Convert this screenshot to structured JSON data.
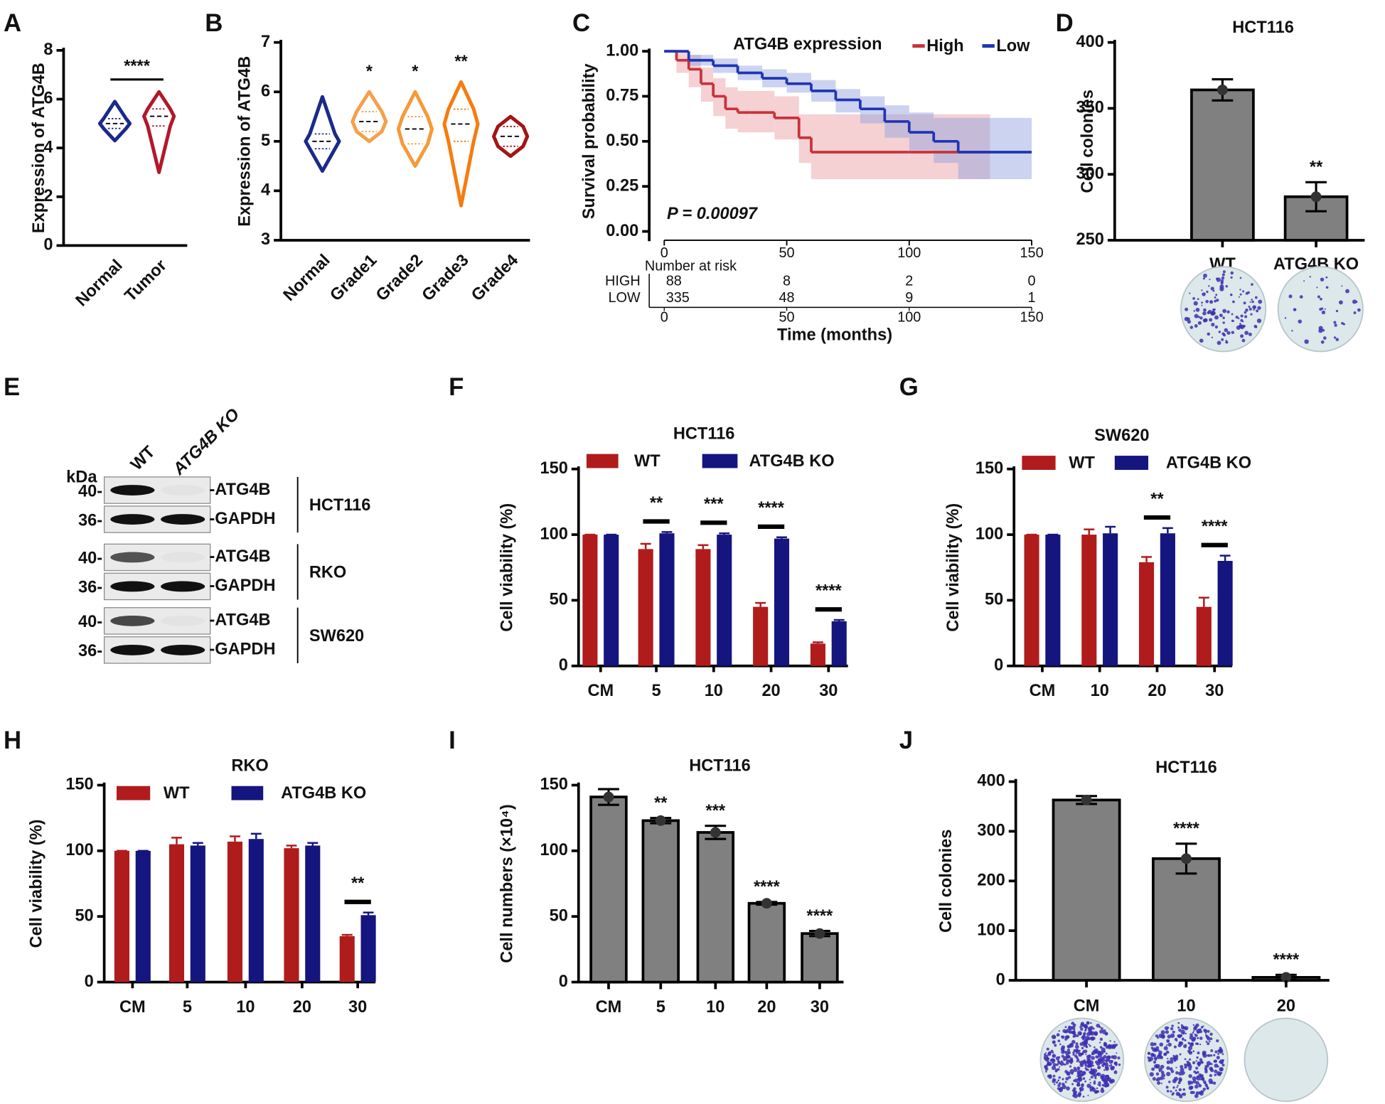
{
  "chart_data": [
    {
      "type": "violin",
      "letter": "A",
      "ylabel": "Expression of ATG4B",
      "ylim": [
        0,
        8
      ],
      "yticks": [
        0,
        2,
        4,
        6,
        8
      ],
      "categories": [
        "Normal",
        "Tumor"
      ],
      "colors": [
        "#1b2a8a",
        "#b2182b"
      ],
      "stats": [
        {
          "min": 4.3,
          "q1": 4.8,
          "median": 5.0,
          "q3": 5.2,
          "max": 5.9
        },
        {
          "min": 3.0,
          "q1": 4.9,
          "median": 5.3,
          "q3": 5.6,
          "max": 6.3
        }
      ],
      "comparison": {
        "text": "****",
        "from": 0,
        "to": 1
      }
    },
    {
      "type": "violin",
      "letter": "B",
      "ylabel": "Expression of ATG4B",
      "ylim": [
        3,
        7
      ],
      "yticks": [
        3,
        4,
        5,
        6,
        7
      ],
      "categories": [
        "Normal",
        "Grade1",
        "Grade2",
        "Grade3",
        "Grade4"
      ],
      "colors": [
        "#1b2a8a",
        "#f5a04a",
        "#f59a3a",
        "#f57c10",
        "#a31515"
      ],
      "stats": [
        {
          "min": 4.4,
          "q1": 4.85,
          "median": 5.0,
          "q3": 5.15,
          "max": 5.9
        },
        {
          "min": 5.0,
          "q1": 5.2,
          "median": 5.4,
          "q3": 5.6,
          "max": 6.0
        },
        {
          "min": 4.5,
          "q1": 4.95,
          "median": 5.25,
          "q3": 5.5,
          "max": 6.0
        },
        {
          "min": 3.7,
          "q1": 5.0,
          "median": 5.35,
          "q3": 5.65,
          "max": 6.2
        },
        {
          "min": 4.7,
          "q1": 4.9,
          "median": 5.1,
          "q3": 5.3,
          "max": 5.5
        }
      ],
      "annotations": [
        {
          "index": 1,
          "text": "*"
        },
        {
          "index": 2,
          "text": "*"
        },
        {
          "index": 3,
          "text": "**"
        }
      ]
    },
    {
      "type": "survival",
      "letter": "C",
      "ylabel": "Survival probability",
      "xlabel": "Time (months)",
      "legend_title": "ATG4B expression",
      "p_value": "P = 0.00097",
      "xlim": [
        0,
        150
      ],
      "xticks": [
        0,
        50,
        100,
        150
      ],
      "ylim": [
        0,
        1
      ],
      "yticks": [
        {
          "value": 0,
          "label": "0.00"
        },
        {
          "value": 0.25,
          "label": "0.25"
        },
        {
          "value": 0.5,
          "label": "0.50"
        },
        {
          "value": 0.75,
          "label": "0.75"
        },
        {
          "value": 1,
          "label": "1.00"
        }
      ],
      "series": [
        {
          "name": "High",
          "color": "#c8323a",
          "band_color": "#e89a9e",
          "x": [
            0,
            5,
            10,
            15,
            20,
            25,
            30,
            35,
            45,
            55,
            60,
            100,
            133
          ],
          "values": [
            1,
            0.95,
            0.9,
            0.82,
            0.75,
            0.68,
            0.66,
            0.66,
            0.63,
            0.52,
            0.44,
            0.44,
            0.44
          ],
          "lower": [
            1,
            0.88,
            0.8,
            0.72,
            0.64,
            0.57,
            0.55,
            0.55,
            0.51,
            0.38,
            0.29,
            0.29,
            0.29
          ],
          "upper": [
            1,
            1,
            0.98,
            0.91,
            0.85,
            0.8,
            0.78,
            0.78,
            0.75,
            0.65,
            0.65,
            0.65,
            0.65
          ]
        },
        {
          "name": "Low",
          "color": "#1f35b4",
          "band_color": "#8f9ee0",
          "x": [
            0,
            10,
            20,
            30,
            40,
            50,
            60,
            70,
            80,
            90,
            100,
            110,
            120,
            150
          ],
          "values": [
            1,
            0.95,
            0.92,
            0.88,
            0.85,
            0.82,
            0.78,
            0.73,
            0.68,
            0.61,
            0.55,
            0.5,
            0.44,
            0.44
          ],
          "lower": [
            1,
            0.92,
            0.88,
            0.84,
            0.8,
            0.77,
            0.72,
            0.66,
            0.6,
            0.52,
            0.45,
            0.38,
            0.29,
            0.29
          ],
          "upper": [
            1,
            0.98,
            0.96,
            0.92,
            0.9,
            0.88,
            0.84,
            0.79,
            0.75,
            0.7,
            0.66,
            0.63,
            0.63,
            0.63
          ]
        }
      ],
      "risk_table": {
        "title": "Number at risk",
        "rows": [
          {
            "label": "HIGH",
            "color": "#c8323a",
            "values": [
              88,
              8,
              2,
              0
            ]
          },
          {
            "label": "LOW",
            "color": "#1f35b4",
            "values": [
              335,
              48,
              9,
              1
            ]
          }
        ]
      }
    },
    {
      "type": "bar",
      "letter": "D",
      "title": "HCT116",
      "ylabel": "Cell colonies",
      "ylim": [
        250,
        400
      ],
      "yticks": [
        250,
        300,
        350,
        400
      ],
      "categories": [
        "WT",
        "ATG4B KO"
      ],
      "values": [
        364,
        283
      ],
      "errors": [
        8,
        11
      ],
      "color": "#808080",
      "annotations": [
        {
          "index": 1,
          "text": "**"
        }
      ]
    },
    {
      "type": "blot",
      "letter": "E",
      "unit": "kDa",
      "lanes": [
        "WT",
        "ATG4B KO"
      ],
      "groups": [
        {
          "cell_line": "HCT116",
          "markers": [
            "40-",
            "36-"
          ],
          "bands": [
            "-ATG4B",
            "-GAPDH"
          ]
        },
        {
          "cell_line": "RKO",
          "markers": [
            "40-",
            "36-"
          ],
          "bands": [
            "-ATG4B",
            "-GAPDH"
          ]
        },
        {
          "cell_line": "SW620",
          "markers": [
            "40-",
            "36-"
          ],
          "bands": [
            "-ATG4B",
            "-GAPDH"
          ]
        }
      ]
    },
    {
      "type": "grouped_bar",
      "letter": "F",
      "title": "HCT116",
      "ylabel": "Cell viability (%)",
      "ylim": [
        0,
        150
      ],
      "yticks": [
        0,
        50,
        100,
        150
      ],
      "categories": [
        "CM",
        "5",
        "10",
        "20",
        "30"
      ],
      "series": [
        {
          "name": "WT",
          "color": "#b01c1c",
          "values": [
            100,
            89,
            89,
            45,
            17
          ],
          "errors": [
            0,
            4,
            3,
            3,
            1
          ]
        },
        {
          "name": "ATG4B KO",
          "color": "#15157f",
          "values": [
            100,
            101,
            100,
            97,
            34
          ],
          "errors": [
            0,
            1,
            1,
            1,
            1
          ]
        }
      ],
      "annotations": [
        {
          "index": 1,
          "text": "**"
        },
        {
          "index": 2,
          "text": "***"
        },
        {
          "index": 3,
          "text": "****"
        },
        {
          "index": 4,
          "text": "****"
        }
      ]
    },
    {
      "type": "grouped_bar",
      "letter": "G",
      "title": "SW620",
      "ylabel": "Cell viability (%)",
      "ylim": [
        0,
        150
      ],
      "yticks": [
        0,
        50,
        100,
        150
      ],
      "categories": [
        "CM",
        "10",
        "20",
        "30"
      ],
      "series": [
        {
          "name": "WT",
          "color": "#b01c1c",
          "values": [
            100,
            100,
            79,
            45
          ],
          "errors": [
            0,
            4,
            4,
            7
          ]
        },
        {
          "name": "ATG4B KO",
          "color": "#15157f",
          "values": [
            100,
            101,
            101,
            80
          ],
          "errors": [
            0,
            5,
            4,
            4
          ]
        }
      ],
      "annotations": [
        {
          "index": 2,
          "text": "**"
        },
        {
          "index": 3,
          "text": "****"
        }
      ]
    },
    {
      "type": "grouped_bar",
      "letter": "H",
      "title": "RKO",
      "ylabel": "Cell viability (%)",
      "ylim": [
        0,
        150
      ],
      "yticks": [
        0,
        50,
        100,
        150
      ],
      "categories": [
        "CM",
        "5",
        "10",
        "20",
        "30"
      ],
      "series": [
        {
          "name": "WT",
          "color": "#b01c1c",
          "values": [
            100,
            105,
            107,
            102,
            35
          ],
          "errors": [
            0,
            5,
            4,
            2,
            1
          ]
        },
        {
          "name": "ATG4B KO",
          "color": "#15157f",
          "values": [
            100,
            104,
            109,
            104,
            51
          ],
          "errors": [
            0,
            2,
            4,
            2,
            2
          ]
        }
      ],
      "annotations": [
        {
          "index": 4,
          "text": "**"
        }
      ]
    },
    {
      "type": "bar",
      "letter": "I",
      "title": "HCT116",
      "ylabel": "Cell numbers (×10⁴)",
      "ylim": [
        0,
        150
      ],
      "yticks": [
        0,
        50,
        100,
        150
      ],
      "categories": [
        "CM",
        "5",
        "10",
        "20",
        "30"
      ],
      "values": [
        141,
        123,
        114,
        60,
        37
      ],
      "errors": [
        6,
        2,
        5,
        1,
        2
      ],
      "color": "#808080",
      "annotations": [
        {
          "index": 1,
          "text": "**"
        },
        {
          "index": 2,
          "text": "***"
        },
        {
          "index": 3,
          "text": "****"
        },
        {
          "index": 4,
          "text": "****"
        }
      ]
    },
    {
      "type": "bar",
      "letter": "J",
      "title": "HCT116",
      "ylabel": "Cell colonies",
      "ylim": [
        0,
        400
      ],
      "yticks": [
        0,
        100,
        200,
        300,
        400
      ],
      "categories": [
        "CM",
        "10",
        "20"
      ],
      "values": [
        363,
        245,
        6
      ],
      "errors": [
        8,
        30,
        5
      ],
      "color": "#808080",
      "annotations": [
        {
          "index": 1,
          "text": "****"
        },
        {
          "index": 2,
          "text": "****"
        }
      ]
    }
  ]
}
